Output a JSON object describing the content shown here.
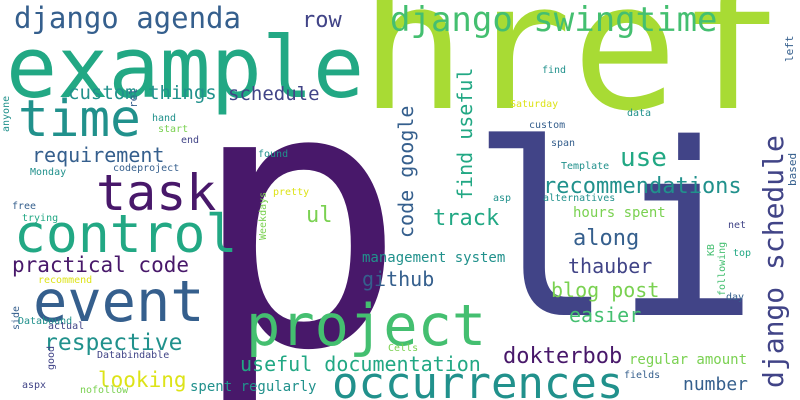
{
  "colors": {
    "background": "#ffffff",
    "lime": "#a8db34",
    "purple": "#48186a",
    "indigo": "#414487",
    "blue": "#355f8d",
    "teal": "#21918c",
    "green": "#22a884",
    "seagreen": "#44bf70",
    "lightgreen": "#7ad151",
    "yellow": "#dde318"
  },
  "words": {
    "w01": "p",
    "w02": "li",
    "w03": "href",
    "w04": "example",
    "w05": "project",
    "w06": "occurrences",
    "w07": "event",
    "w08": "control",
    "w09": "task",
    "w10": "time",
    "w11": "django agenda",
    "w12": "django swingtime",
    "w13": "django schedule",
    "w14": "row",
    "w15": "custom things",
    "w16": "schedule",
    "w17": "requirement",
    "w18": "practical code",
    "w19": "respective",
    "w20": "looking",
    "w21": "use",
    "w22": "recommendations",
    "w23": "track",
    "w24": "along",
    "w25": "thauber",
    "w26": "blog post",
    "w27": "easier",
    "w28": "github",
    "w29": "ul",
    "w30": "code google",
    "w31": "find useful",
    "w32": "useful documentation",
    "w33": "dokterbob",
    "w34": "number",
    "w35": "management system",
    "w36": "hours spent",
    "w37": "regular amount",
    "w38": "spent regularly",
    "w39": "left",
    "w40": "based",
    "w41": "find",
    "w42": "data",
    "w43": "Saturday",
    "w44": "custom",
    "w45": "span",
    "w46": "Template",
    "w47": "asp",
    "w48": "alternatives",
    "w49": "net",
    "w50": "KB",
    "w51": "top",
    "w52": "following",
    "w53": "day",
    "w54": "rel",
    "w55": "hand",
    "w56": "start",
    "w57": "end",
    "w58": "found",
    "w59": "codeproject",
    "w60": "pretty",
    "w61": "Weekdays",
    "w62": "Monday",
    "w63": "free",
    "w64": "trying",
    "w65": "recommend",
    "w66": "side",
    "w67": "Databound",
    "w68": "actual",
    "w69": "good",
    "w70": "aspx",
    "w71": "nofollow",
    "w72": "Databindable",
    "w73": "Cells",
    "w74": "fields",
    "w75": "anyone"
  }
}
